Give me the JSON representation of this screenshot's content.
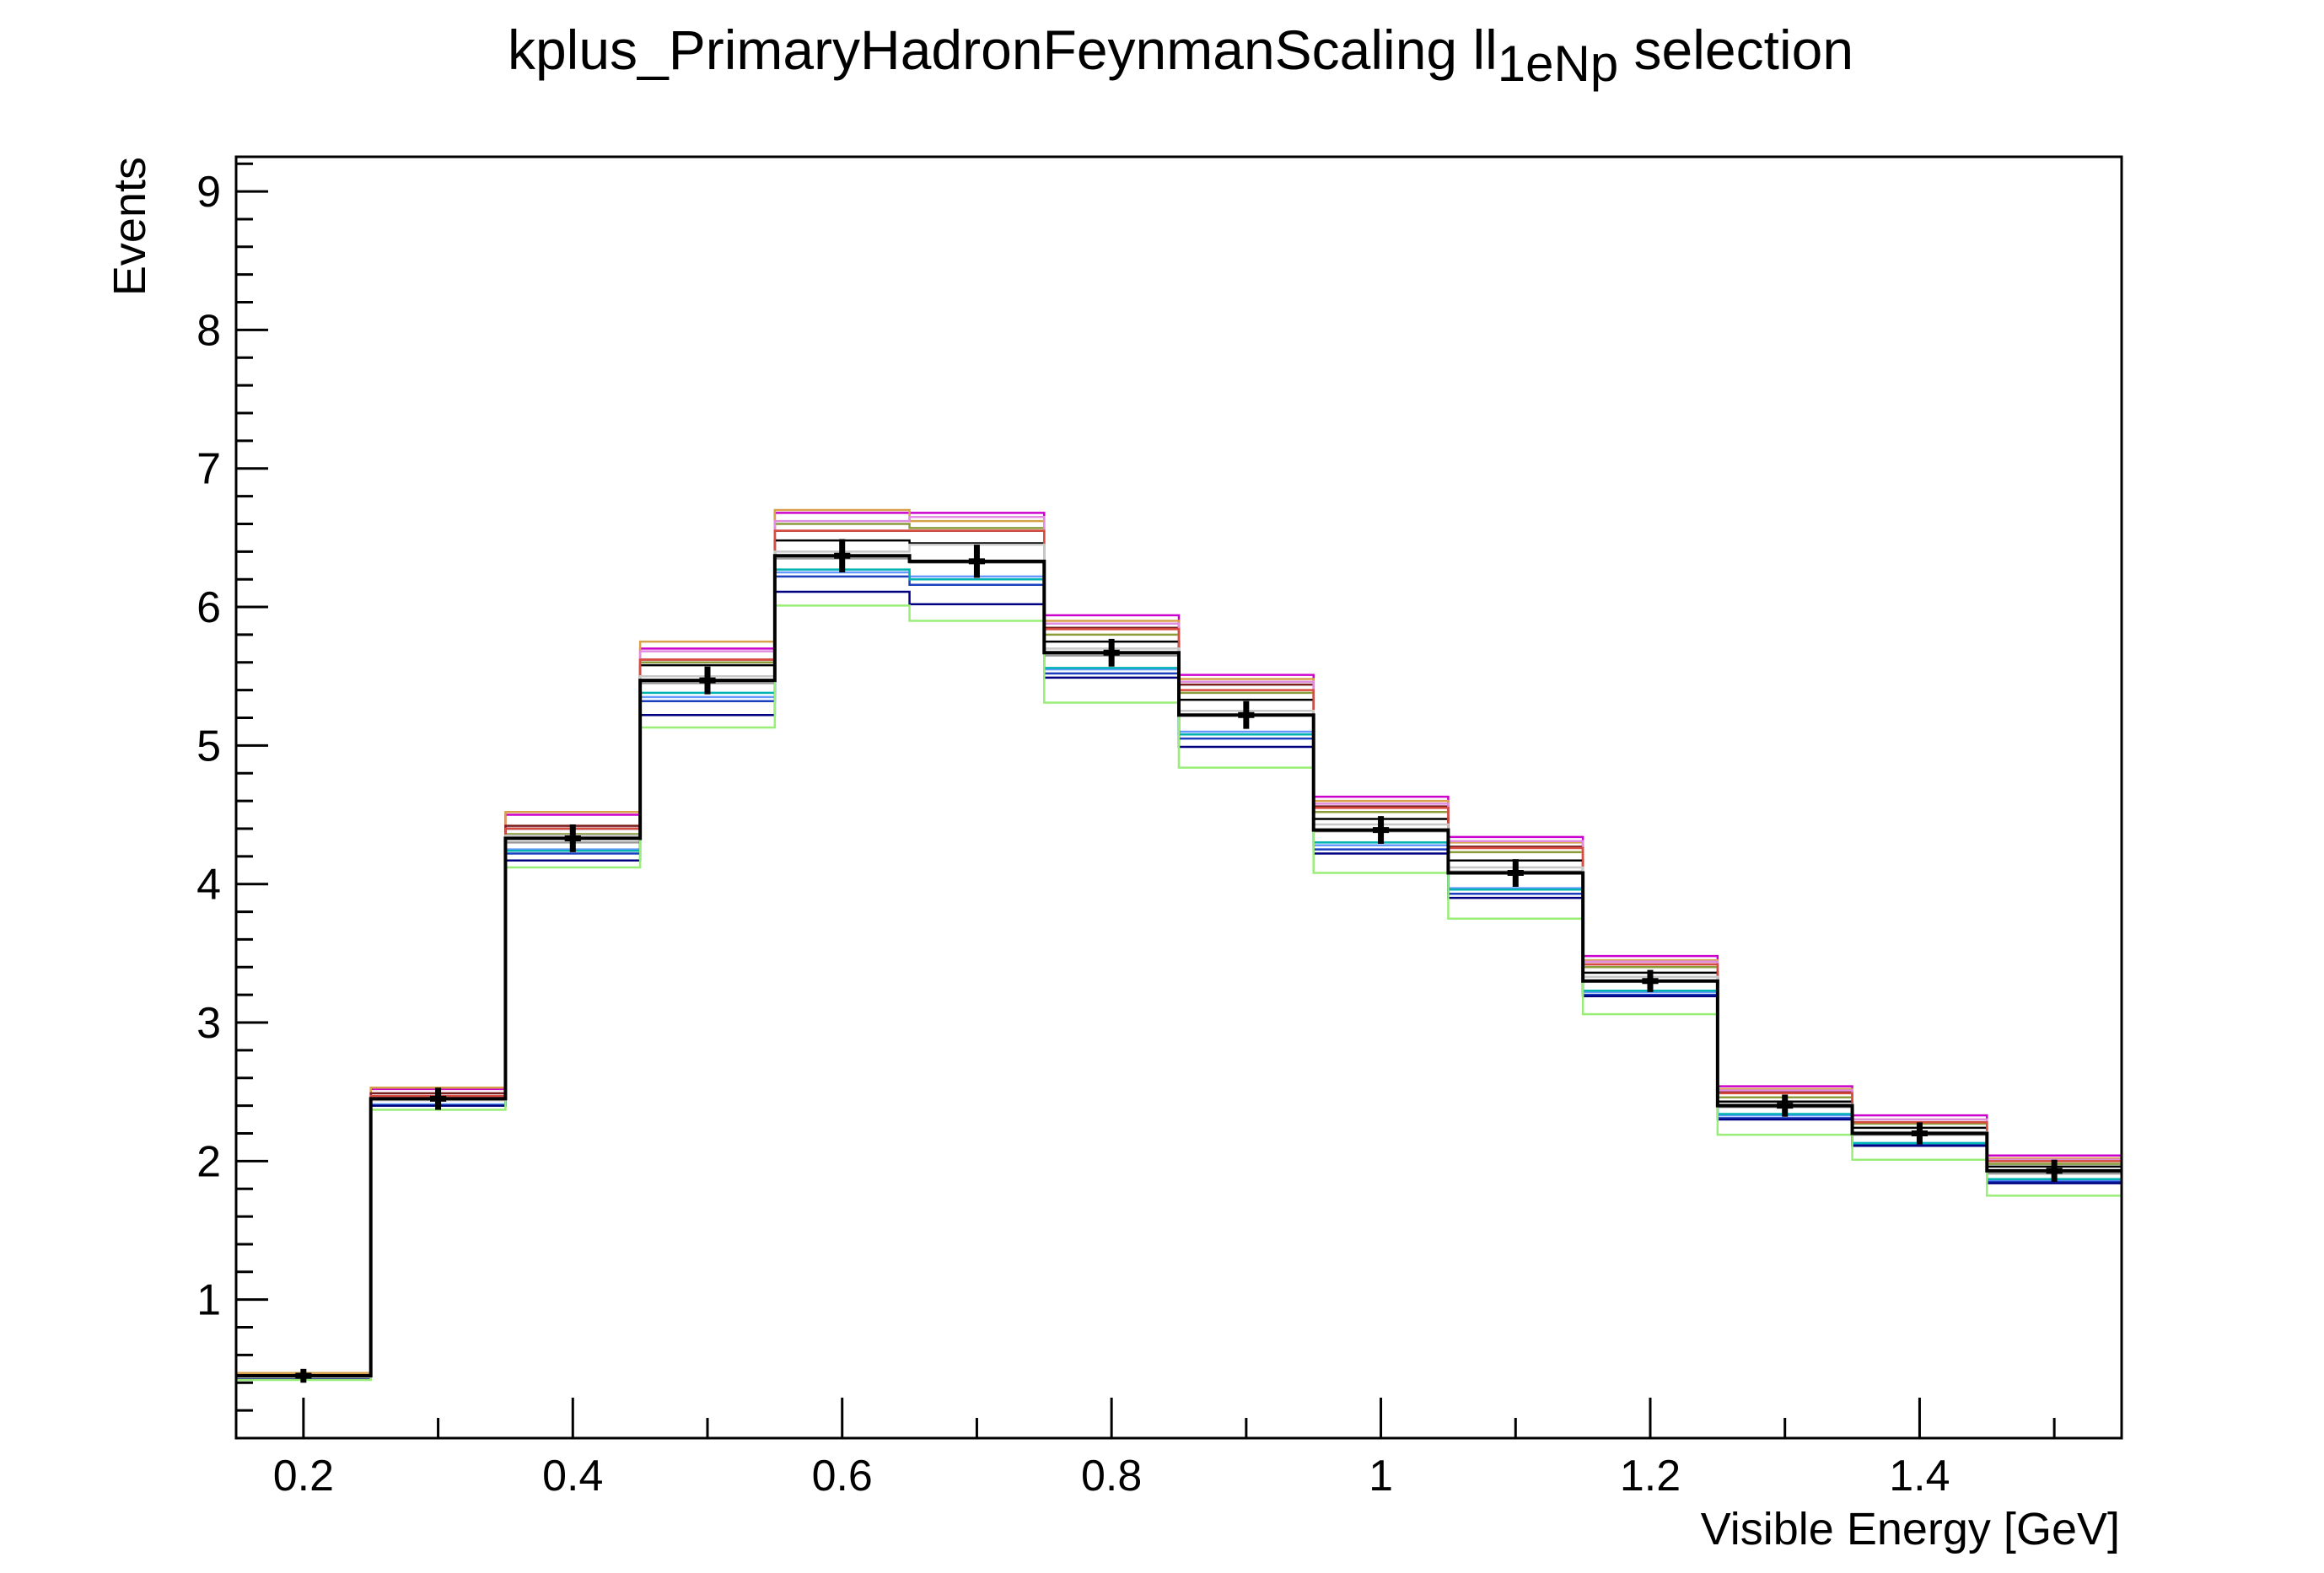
{
  "chart_data": {
    "type": "histogram",
    "title_main": "kplus_PrimaryHadronFeynmanScaling ll",
    "title_sub": "1eNp",
    "title_tail": " selection",
    "xlabel": "Visible Energy [GeV]",
    "ylabel": "Events",
    "xlim": [
      0.15,
      1.55
    ],
    "ylim": [
      0,
      9.25
    ],
    "x_ticks": [
      {
        "value": 0.2,
        "label": "0.2"
      },
      {
        "value": 0.4,
        "label": "0.4"
      },
      {
        "value": 0.6,
        "label": "0.6"
      },
      {
        "value": 0.8,
        "label": "0.8"
      },
      {
        "value": 1.0,
        "label": "1"
      },
      {
        "value": 1.2,
        "label": "1.2"
      },
      {
        "value": 1.4,
        "label": "1.4"
      }
    ],
    "y_ticks": [
      {
        "value": 1,
        "label": "1"
      },
      {
        "value": 2,
        "label": "2"
      },
      {
        "value": 3,
        "label": "3"
      },
      {
        "value": 4,
        "label": "4"
      },
      {
        "value": 5,
        "label": "5"
      },
      {
        "value": 6,
        "label": "6"
      },
      {
        "value": 7,
        "label": "7"
      },
      {
        "value": 8,
        "label": "8"
      },
      {
        "value": 9,
        "label": "9"
      }
    ],
    "bin_edges": [
      0.15,
      0.25,
      0.35,
      0.45,
      0.55,
      0.65,
      0.75,
      0.85,
      0.95,
      1.05,
      1.15,
      1.25,
      1.35,
      1.45,
      1.55
    ],
    "nominal": {
      "color": "#000000",
      "x": [
        0.2,
        0.3,
        0.4,
        0.5,
        0.6,
        0.7,
        0.8,
        0.9,
        1.0,
        1.1,
        1.2,
        1.3,
        1.4,
        1.5
      ],
      "y": [
        0.45,
        2.45,
        4.33,
        5.47,
        6.37,
        6.33,
        5.67,
        5.22,
        4.39,
        4.08,
        3.3,
        2.4,
        2.2,
        1.93
      ],
      "yerr": [
        0.05,
        0.08,
        0.1,
        0.1,
        0.12,
        0.12,
        0.1,
        0.1,
        0.1,
        0.1,
        0.08,
        0.08,
        0.08,
        0.08
      ]
    },
    "universes": [
      {
        "color": "#cc00cc",
        "values": [
          0.46,
          2.52,
          4.5,
          5.7,
          6.68,
          6.68,
          5.94,
          5.51,
          4.63,
          4.34,
          3.48,
          2.54,
          2.33,
          2.04
        ]
      },
      {
        "color": "#d7a04a",
        "values": [
          0.47,
          2.53,
          4.52,
          5.75,
          6.7,
          6.62,
          5.9,
          5.48,
          4.6,
          4.3,
          3.45,
          2.52,
          2.3,
          2.02
        ]
      },
      {
        "color": "#7a1f1f",
        "values": [
          0.45,
          2.49,
          4.42,
          5.62,
          6.55,
          6.55,
          5.85,
          5.44,
          4.56,
          4.27,
          3.42,
          2.5,
          2.28,
          2.0
        ]
      },
      {
        "color": "#8b9c3a",
        "values": [
          0.45,
          2.46,
          4.36,
          5.6,
          6.6,
          6.57,
          5.8,
          5.38,
          4.52,
          4.23,
          3.4,
          2.46,
          2.27,
          1.98
        ]
      },
      {
        "color": "#e08ce0",
        "values": [
          0.45,
          2.47,
          4.4,
          5.68,
          6.62,
          6.65,
          5.88,
          5.46,
          4.58,
          4.31,
          3.44,
          2.51,
          2.3,
          2.01
        ]
      },
      {
        "color": "#000000",
        "values": [
          0.44,
          2.45,
          4.4,
          5.58,
          6.48,
          6.46,
          5.75,
          5.33,
          4.47,
          4.17,
          3.36,
          2.43,
          2.24,
          1.96
        ]
      },
      {
        "color": "#999999",
        "values": [
          0.44,
          2.44,
          4.3,
          5.45,
          6.35,
          6.32,
          5.65,
          5.22,
          4.38,
          4.09,
          3.3,
          2.39,
          2.19,
          1.91
        ]
      },
      {
        "color": "#6699ff",
        "values": [
          0.43,
          2.41,
          4.25,
          5.35,
          6.25,
          6.22,
          5.55,
          5.1,
          4.28,
          3.97,
          3.22,
          2.33,
          2.13,
          1.86
        ]
      },
      {
        "color": "#1a3fbf",
        "values": [
          0.43,
          2.4,
          4.22,
          5.32,
          6.22,
          6.16,
          5.52,
          5.05,
          4.25,
          3.93,
          3.2,
          2.31,
          2.12,
          1.85
        ]
      },
      {
        "color": "#00b3b3",
        "values": [
          0.43,
          2.4,
          4.24,
          5.38,
          6.27,
          6.2,
          5.56,
          5.08,
          4.3,
          3.96,
          3.23,
          2.34,
          2.13,
          1.87
        ]
      },
      {
        "color": "#000080",
        "values": [
          0.43,
          2.4,
          4.17,
          5.22,
          6.11,
          6.02,
          5.49,
          4.99,
          4.22,
          3.9,
          3.19,
          2.3,
          2.11,
          1.84
        ]
      },
      {
        "color": "#99ee77",
        "values": [
          0.42,
          2.37,
          4.12,
          5.13,
          6.01,
          5.9,
          5.31,
          4.84,
          4.08,
          3.75,
          3.06,
          2.19,
          2.01,
          1.75
        ]
      },
      {
        "color": "#d94b3f",
        "values": [
          0.44,
          2.47,
          4.4,
          5.62,
          6.55,
          6.55,
          5.84,
          5.4,
          4.55,
          4.26,
          3.42,
          2.49,
          2.28,
          2.0
        ]
      },
      {
        "color": "#c8c8c8",
        "values": [
          0.44,
          2.44,
          4.35,
          5.5,
          6.4,
          6.45,
          5.7,
          5.25,
          4.43,
          4.12,
          3.33,
          2.41,
          2.21,
          1.93
        ]
      }
    ]
  }
}
